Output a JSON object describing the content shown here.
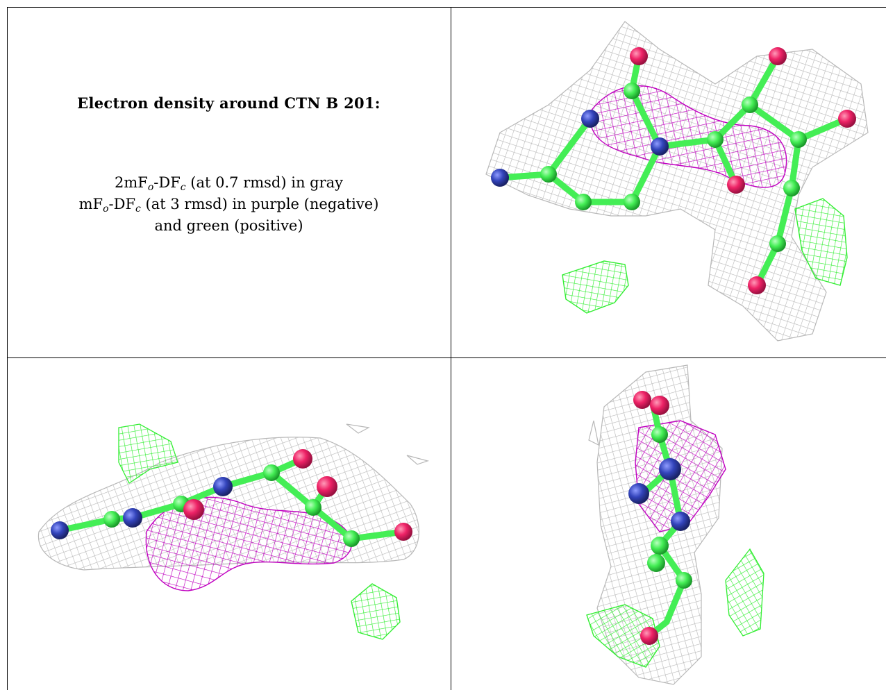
{
  "caption": {
    "title": "Electron density around CTN B 201:",
    "line1": {
      "prefix": "2mF",
      "sub1": "o",
      "mid": "-DF",
      "sub2": "c",
      "suffix": " (at 0.7 rmsd) in gray"
    },
    "line2": {
      "prefix": "mF",
      "sub1": "o",
      "mid": "-DF",
      "sub2": "c",
      "suffix": " (at 3 rmsd) in purple (negative)"
    },
    "line3": "and green (positive)"
  },
  "colors": {
    "mesh_gray": "#b8b8b8",
    "mesh_purple": "#c000c0",
    "mesh_green": "#33ee33",
    "atom_carbon": "#44ee55",
    "atom_nitrogen": "#3344bb",
    "atom_oxygen": "#ee2266",
    "border": "#000000"
  }
}
